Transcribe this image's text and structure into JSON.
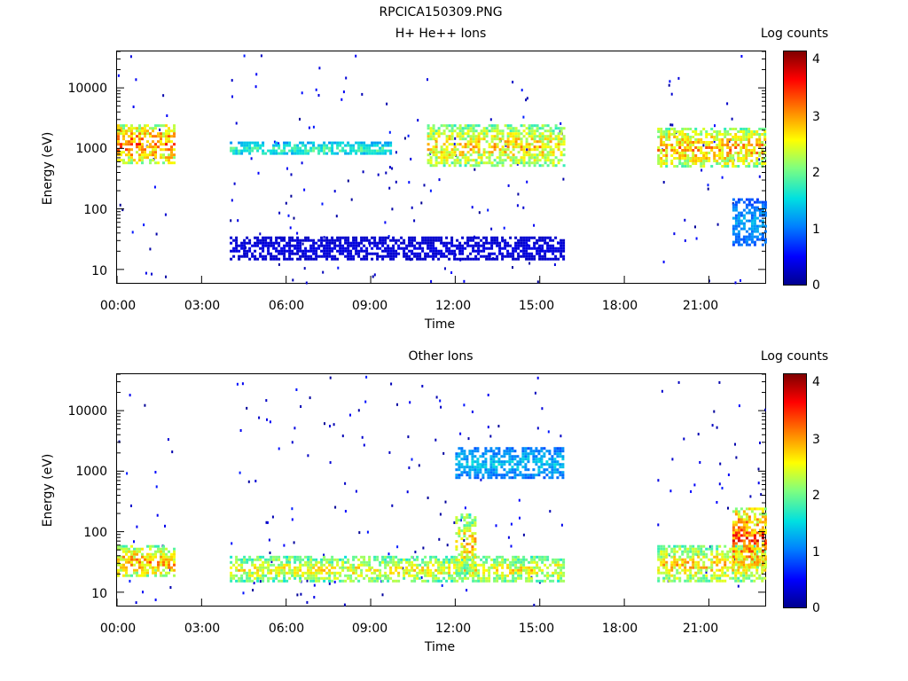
{
  "page_title": "RPCICA150309.PNG",
  "chart_data": [
    {
      "type": "heatmap",
      "title": "H+ He++ Ions",
      "xlabel": "Time",
      "ylabel": "Energy (eV)",
      "xlim": [
        "00:00",
        "23:00"
      ],
      "x_ticks": [
        "00:00",
        "03:00",
        "06:00",
        "09:00",
        "12:00",
        "15:00",
        "18:00",
        "21:00"
      ],
      "yscale": "log",
      "ylim": [
        6,
        40000
      ],
      "y_ticks": [
        "10",
        "100",
        "1000",
        "10000"
      ],
      "colorbar": {
        "label": "Log counts",
        "range": [
          0,
          4.2
        ],
        "ticks": [
          "0",
          "1",
          "2",
          "3",
          "4"
        ]
      },
      "data_gaps": [
        [
          "02:00",
          "04:00"
        ],
        [
          "15:50",
          "19:10"
        ]
      ],
      "features": [
        {
          "time": [
            "00:00",
            "02:00"
          ],
          "energy_ev": [
            600,
            2500
          ],
          "log_counts": 3.5
        },
        {
          "time": [
            "04:00",
            "09:45"
          ],
          "energy_ev": [
            800,
            1300
          ],
          "log_counts": 2.0
        },
        {
          "time": [
            "04:00",
            "15:50"
          ],
          "energy_ev": [
            15,
            35
          ],
          "log_counts": 0.4
        },
        {
          "time": [
            "11:00",
            "15:50"
          ],
          "energy_ev": [
            500,
            2500
          ],
          "log_counts": 3.0
        },
        {
          "time": [
            "19:10",
            "23:00"
          ],
          "energy_ev": [
            500,
            2200
          ],
          "log_counts": 3.2
        },
        {
          "time": [
            "21:50",
            "23:00"
          ],
          "energy_ev": [
            25,
            150
          ],
          "log_counts": 1.3
        }
      ]
    },
    {
      "type": "heatmap",
      "title": "Other Ions",
      "xlabel": "Time",
      "ylabel": "Energy (eV)",
      "xlim": [
        "00:00",
        "23:00"
      ],
      "x_ticks": [
        "00:00",
        "03:00",
        "06:00",
        "09:00",
        "12:00",
        "15:00",
        "18:00",
        "21:00"
      ],
      "yscale": "log",
      "ylim": [
        6,
        40000
      ],
      "y_ticks": [
        "10",
        "100",
        "1000",
        "10000"
      ],
      "colorbar": {
        "label": "Log counts",
        "range": [
          0,
          4.2
        ],
        "ticks": [
          "0",
          "1",
          "2",
          "3",
          "4"
        ]
      },
      "data_gaps": [
        [
          "02:00",
          "04:00"
        ],
        [
          "15:50",
          "19:10"
        ]
      ],
      "features": [
        {
          "time": [
            "00:00",
            "02:00"
          ],
          "energy_ev": [
            18,
            60
          ],
          "log_counts": 3.2
        },
        {
          "time": [
            "04:00",
            "15:50"
          ],
          "energy_ev": [
            15,
            40
          ],
          "log_counts": 2.8
        },
        {
          "time": [
            "12:00",
            "12:40"
          ],
          "energy_ev": [
            20,
            200
          ],
          "log_counts": 3.0
        },
        {
          "time": [
            "12:00",
            "15:50"
          ],
          "energy_ev": [
            800,
            2500
          ],
          "log_counts": 1.5
        },
        {
          "time": [
            "19:10",
            "23:00"
          ],
          "energy_ev": [
            15,
            60
          ],
          "log_counts": 3.0
        },
        {
          "time": [
            "21:50",
            "23:00"
          ],
          "energy_ev": [
            25,
            250
          ],
          "log_counts": 3.6
        }
      ]
    }
  ]
}
